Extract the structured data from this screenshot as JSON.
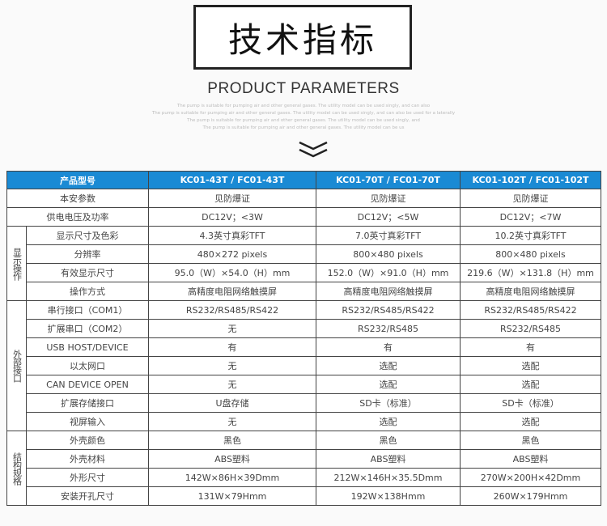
{
  "title": "技术指标",
  "subtitle": "PRODUCT PARAMETERS",
  "filler": [
    "The pump is suitable for pumping air and other general gases. The utility model can be used singly, and can also",
    "The pump is suitable for pumping air and other general gases. The utility model can be used singly, and can also be used for a laterally",
    "The pump is suitable for pumping air and other general gases. The utility model can be used singly, and",
    "The pump is suitable for pumping air and other general gases. The utility model can be us"
  ],
  "table": {
    "header": [
      "产品型号",
      "KC01-43T / FC01-43T",
      "KC01-70T / FC01-70T",
      "KC01-102T / FC01-102T"
    ],
    "top_rows": [
      {
        "label": "本安参数",
        "values": [
          "见防爆证",
          "见防爆证",
          "见防爆证"
        ]
      },
      {
        "label": "供电电压及功率",
        "values": [
          "DC12V；<3W",
          "DC12V；<5W",
          "DC12V；<7W"
        ]
      }
    ],
    "sections": [
      {
        "name": "显示操作",
        "rows": [
          {
            "label": "显示尺寸及色彩",
            "values": [
              "4.3英寸真彩TFT",
              "7.0英寸真彩TFT",
              "10.2英寸真彩TFT"
            ]
          },
          {
            "label": "分辨率",
            "values": [
              "480×272 pixels",
              "800×480 pixels",
              "800×480 pixels"
            ]
          },
          {
            "label": "有效显示尺寸",
            "values": [
              "95.0（W）×54.0（H）mm",
              "152.0（W）×91.0（H）mm",
              "219.6（W）×131.8（H）mm"
            ]
          },
          {
            "label": "操作方式",
            "values": [
              "高精度电阻网络触摸屏",
              "高精度电阻网络触摸屏",
              "高精度电阻网络触摸屏"
            ]
          }
        ]
      },
      {
        "name": "外部接口",
        "rows": [
          {
            "label": "串行接口（COM1）",
            "values": [
              "RS232/RS485/RS422",
              "RS232/RS485/RS422",
              "RS232/RS485/RS422"
            ]
          },
          {
            "label": "扩展串口（COM2）",
            "values": [
              "无",
              "RS232/RS485",
              "RS232/RS485"
            ]
          },
          {
            "label": "USB HOST/DEVICE",
            "values": [
              "有",
              "有",
              "有"
            ]
          },
          {
            "label": "以太网口",
            "values": [
              "无",
              "选配",
              "选配"
            ]
          },
          {
            "label": "CAN DEVICE OPEN",
            "values": [
              "无",
              "选配",
              "选配"
            ]
          },
          {
            "label": "扩展存储接口",
            "values": [
              "U盘存储",
              "SD卡（标准）",
              "SD卡（标准）"
            ]
          },
          {
            "label": "视屏输入",
            "values": [
              "无",
              "选配",
              "选配"
            ]
          }
        ]
      },
      {
        "name": "结构规格",
        "rows": [
          {
            "label": "外壳颜色",
            "values": [
              "黑色",
              "黑色",
              "黑色"
            ]
          },
          {
            "label": "外壳材料",
            "values": [
              "ABS塑料",
              "ABS塑料",
              "ABS塑料"
            ]
          },
          {
            "label": "外形尺寸",
            "values": [
              "142W×86H×39Dmm",
              "212W×146H×35.5Dmm",
              "270W×200H×42Dmm"
            ]
          },
          {
            "label": "安装开孔尺寸",
            "values": [
              "131W×79Hmm",
              "192W×138Hmm",
              "260W×179Hmm"
            ]
          }
        ]
      }
    ]
  },
  "colors": {
    "header_bg": "#1a8ad4",
    "border": "#444444"
  }
}
